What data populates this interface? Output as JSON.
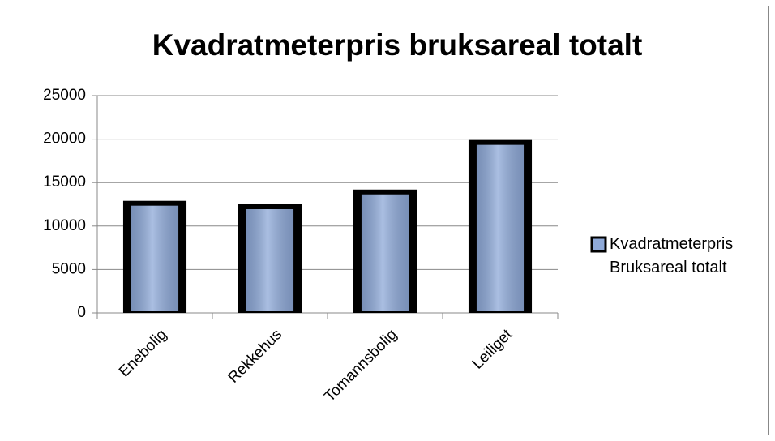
{
  "chart_data": {
    "type": "bar",
    "title": "Kvadratmeterpris bruksareal totalt",
    "categories": [
      "Enebolig",
      "Rekkehus",
      "Tomannsbolig",
      "Leiliget"
    ],
    "series": [
      {
        "name": "Kvadratmeterpris Bruksareal totalt",
        "color": "#8ea9d8",
        "values": [
          12900,
          12500,
          14200,
          19900
        ]
      }
    ],
    "ylim": [
      0,
      25000
    ],
    "yticks": [
      0,
      5000,
      10000,
      15000,
      20000,
      25000
    ],
    "grid": true,
    "legend": "right"
  }
}
